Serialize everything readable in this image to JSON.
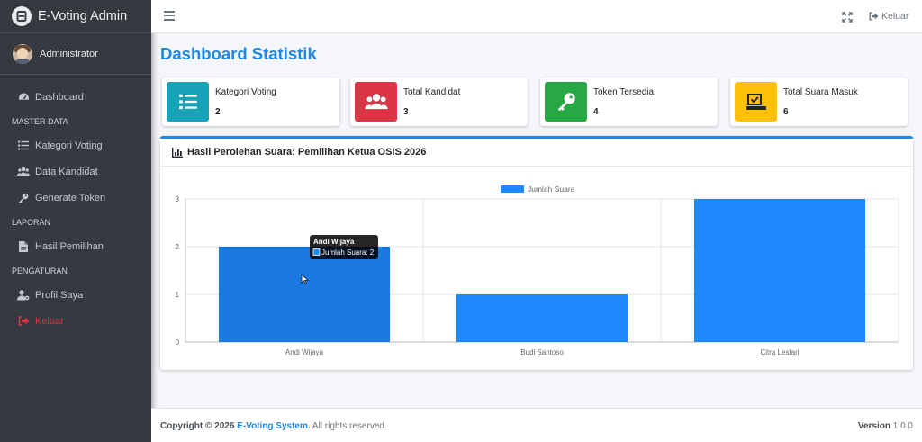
{
  "brand": {
    "title": "E-Voting Admin"
  },
  "user": {
    "name": "Administrator"
  },
  "sidebar": {
    "dashboard": "Dashboard",
    "header_master": "MASTER DATA",
    "kategori": "Kategori Voting",
    "kandidat": "Data Kandidat",
    "token": "Generate Token",
    "header_laporan": "LAPORAN",
    "hasil": "Hasil Pemilihan",
    "header_pengaturan": "PENGATURAN",
    "profil": "Profil Saya",
    "keluar": "Keluar"
  },
  "navbar": {
    "logout_label": "Keluar"
  },
  "page": {
    "title": "Dashboard Statistik"
  },
  "stats": [
    {
      "label": "Kategori Voting",
      "value": "2",
      "color": "#17a2b8",
      "icon": "list-icon"
    },
    {
      "label": "Total Kandidat",
      "value": "3",
      "color": "#dc3545",
      "icon": "users-icon"
    },
    {
      "label": "Token Tersedia",
      "value": "4",
      "color": "#28a745",
      "icon": "key-icon"
    },
    {
      "label": "Total Suara Masuk",
      "value": "6",
      "color": "#ffc107",
      "icon": "vote-box-icon"
    }
  ],
  "card": {
    "title": "Hasil Perolehan Suara: Pemilihan Ketua OSIS 2026"
  },
  "chart_data": {
    "type": "bar",
    "categories": [
      "Andi Wijaya",
      "Budi Santoso",
      "Citra Lestari"
    ],
    "series": [
      {
        "name": "Jumlah Suara",
        "values": [
          2,
          1,
          3
        ]
      }
    ],
    "yticks": [
      "0",
      "1",
      "2",
      "3"
    ],
    "ylim": [
      0,
      3
    ],
    "bar_color": "#1e88ff",
    "hover_bar_color": "#1a7ae0",
    "legend": "top",
    "grid": true,
    "tooltip": {
      "title": "Andi Wijaya",
      "body": "Jumlah Suara: 2"
    }
  },
  "footer": {
    "copyright": "Copyright © 2026",
    "brand": "E-Voting System.",
    "rights": "All rights reserved.",
    "version_label": "Version",
    "version": "1.0.0"
  }
}
